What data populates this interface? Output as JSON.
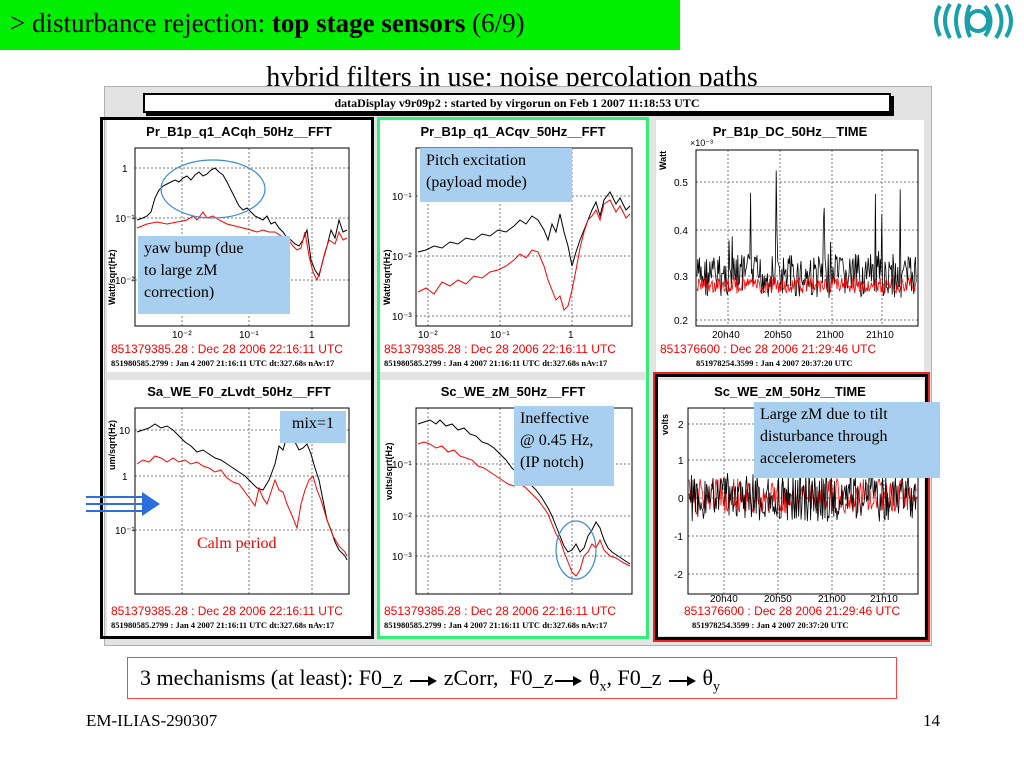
{
  "header": {
    "prefix": "> ",
    "title_main": "disturbance rejection: ",
    "title_bold": "top stage sensors",
    "title_page": " (6/9)"
  },
  "subtitle": "hybrid filters in use: noise percolation paths",
  "display": {
    "title": "dataDisplay v9r09p2 : started by virgorun on Feb 1 2007 11:18:53 UTC"
  },
  "panels": [
    {
      "title": "Pr_B1p_q1_ACqh_50Hz__FFT",
      "ylabel": "Watt/sqrt(Hz)",
      "foot1": "851379385.28 : Dec 28 2006 22:16:11 UTC",
      "foot2": "851980585.2799 : Jan 4 2007 21:16:11 UTC dt:327.68s nAv:17"
    },
    {
      "title": "Pr_B1p_q1_ACqv_50Hz__FFT",
      "ylabel": "Watt/sqrt(Hz)",
      "foot1": "851379385.28 : Dec 28 2006 22:16:11 UTC",
      "foot2": "851980585.2799 : Jan 4 2007 21:16:11 UTC dt:327.68s nAv:17"
    },
    {
      "title": "Pr_B1p_DC_50Hz__TIME",
      "ylabel": "Watt",
      "foot1": "851376600 : Dec 28 2006 21:29:46 UTC",
      "foot2": "851978254.3599 : Jan 4 2007 20:37:20 UTC"
    },
    {
      "title": "Sa_WE_F0_zLvdt_50Hz__FFT",
      "ylabel": "um/sqrt(Hz)",
      "foot1": "851379385.28 : Dec 28 2006 22:16:11 UTC",
      "foot2": "851980585.2799 : Jan 4 2007 21:16:11 UTC dt:327.68s nAv:17"
    },
    {
      "title": "Sc_WE_zM_50Hz__FFT",
      "ylabel": "volts/sqrt(Hz)",
      "foot1": "851379385.28 : Dec 28 2006 22:16:11 UTC",
      "foot2": "851980585.2799 : Jan 4 2007 21:16:11 UTC dt:327.68s nAv:17"
    },
    {
      "title": "Sc_WE_zM_50Hz__TIME",
      "ylabel": "volts",
      "foot1": "851376600 : Dec 28 2006 21:29:46 UTC",
      "foot2": "851978254.3599 : Jan 4 2007 20:37:20 UTC"
    }
  ],
  "ticks": {
    "fft_x": [
      "10⁻²",
      "10⁻¹",
      "1"
    ],
    "p1_y": [
      "1",
      "10⁻¹",
      "10⁻²"
    ],
    "p2_y": [
      "10⁻¹",
      "10⁻²",
      "10⁻³"
    ],
    "p3_y": [
      "0.5",
      "0.4",
      "0.3",
      "0.2"
    ],
    "p3_mult": "×10⁻³",
    "p4_y": [
      "10",
      "1",
      "10⁻¹"
    ],
    "p5_y": [
      "10⁻¹",
      "10⁻²",
      "10⁻³"
    ],
    "p6_y": [
      "2",
      "1",
      "0",
      "-1",
      "-2"
    ],
    "time_x": [
      "20h40",
      "20h50",
      "21h00",
      "21h10"
    ]
  },
  "notes": {
    "pitch": [
      "Pitch excitation",
      "(payload mode)"
    ],
    "yaw": [
      "yaw bump (due",
      "to large zM",
      "correction)"
    ],
    "mix": "mix=1",
    "ineffective": [
      "Ineffective",
      "@ 0.45 Hz,",
      "(IP notch)"
    ],
    "largezm": [
      "Large zM due to tilt",
      "disturbance through",
      "accelerometers"
    ],
    "calm": "Calm period"
  },
  "mechanisms": {
    "prefix": "3 mechanisms (at least): ",
    "a1": "F0_z",
    "b1": "zCorr,",
    "a2": "F0_z",
    "b2": "θ",
    "b2sub": "x",
    "sep": ",",
    "a3": "F0_z",
    "b3": "θ",
    "b3sub": "y"
  },
  "footer": {
    "left": "EM-ILIAS-290307",
    "page": "14"
  },
  "colors": {
    "header_bg": "#00ee00",
    "note_bg": "#a8cfef",
    "curve_red": "#ff0000",
    "frame_green": "#33ee77",
    "frame_black": "#000000",
    "frame_red": "#ee2222"
  }
}
